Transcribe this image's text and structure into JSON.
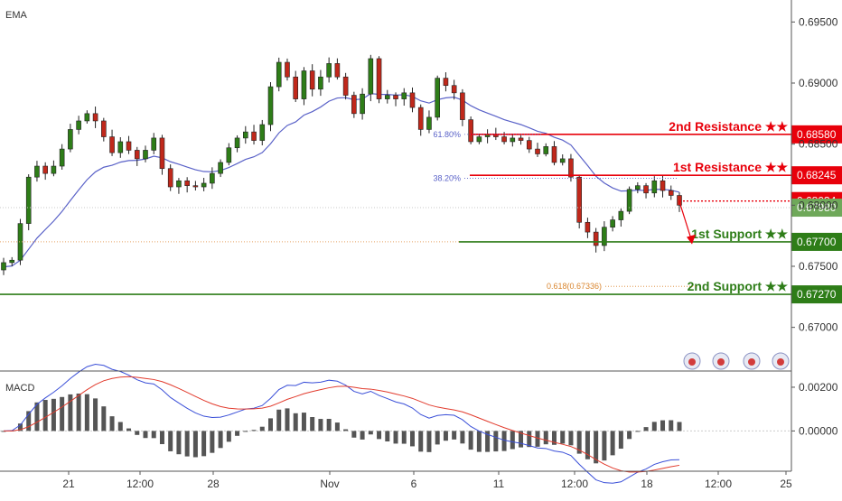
{
  "indicators": {
    "ema_label": "EMA",
    "macd_label": "MACD"
  },
  "chart_data": [
    {
      "type": "candlestick",
      "title": "",
      "price_axis_ticks": [
        "0.69500",
        "0.69000",
        "0.68500",
        "0.68000",
        "0.67500",
        "0.67000"
      ],
      "price_axis_tick_values": [
        0.695,
        0.69,
        0.685,
        0.68,
        0.675,
        0.67
      ],
      "ylim": [
        0.6665,
        0.6968
      ],
      "time_axis_ticks": [
        "21",
        "12:00",
        "28",
        "Nov",
        "6",
        "11",
        "12:00",
        "18",
        "12:00",
        "25"
      ],
      "levels": [
        {
          "label": "2nd Resistance ★★",
          "value": "0.68580",
          "price": 0.6858,
          "color": "#e8000b",
          "style": "solid"
        },
        {
          "label": "1st Resistance ★★",
          "value": "0.68245",
          "price": 0.68245,
          "color": "#e8000b",
          "style": "solid"
        },
        {
          "label": "",
          "value": "0.68034",
          "price": 0.68034,
          "color": "#e8000b",
          "style": "dotted"
        },
        {
          "label": "",
          "value": "0.67980",
          "price": 0.6798,
          "color": "#6fa85a",
          "style": "last-price"
        },
        {
          "label": "1st Support ★★",
          "value": "0.67700",
          "price": 0.677,
          "color": "#2e7d18",
          "style": "solid"
        },
        {
          "label": "2nd Support ★★",
          "value": "0.67270",
          "price": 0.6727,
          "color": "#2e7d18",
          "style": "solid"
        }
      ],
      "fibonacci": [
        {
          "label": "61.80%",
          "price": 0.6858
        },
        {
          "label": "38.20%",
          "price": 0.6822
        },
        {
          "label": "0.618(0.67336)",
          "price": 0.67336
        }
      ],
      "colors": {
        "up": "#2e7d18",
        "down": "#c0281b",
        "ema": "#5a62c8",
        "resistance": "#e8000b",
        "support": "#2e7d18"
      },
      "close_path": [
        0.6753,
        0.6755,
        0.6785,
        0.6823,
        0.6832,
        0.6826,
        0.6832,
        0.6846,
        0.6862,
        0.6869,
        0.6875,
        0.6869,
        0.6856,
        0.6843,
        0.6852,
        0.6845,
        0.6838,
        0.6845,
        0.6855,
        0.683,
        0.6815,
        0.682,
        0.6816,
        0.6815,
        0.6818,
        0.6826,
        0.6835,
        0.6847,
        0.6855,
        0.686,
        0.6853,
        0.6866,
        0.6897,
        0.6917,
        0.6905,
        0.6887,
        0.691,
        0.6895,
        0.6905,
        0.6916,
        0.6905,
        0.689,
        0.6875,
        0.6891,
        0.692,
        0.6887,
        0.689,
        0.6887,
        0.6892,
        0.688,
        0.6862,
        0.6872,
        0.6904,
        0.6898,
        0.6892,
        0.687,
        0.6852,
        0.6856,
        0.6858,
        0.6856,
        0.6852,
        0.6855,
        0.6853,
        0.6846,
        0.6842,
        0.6848,
        0.6835,
        0.6838,
        0.6823,
        0.6786,
        0.6778,
        0.6767,
        0.6782,
        0.6788,
        0.6795,
        0.6813,
        0.6816,
        0.681,
        0.682,
        0.6812,
        0.6808,
        0.68
      ],
      "macd_ticks": [
        "0.00200",
        "0.00000"
      ],
      "macd_tick_values": [
        0.002,
        0.0
      ],
      "macd_ylim": [
        -0.0018,
        0.0027
      ]
    }
  ]
}
